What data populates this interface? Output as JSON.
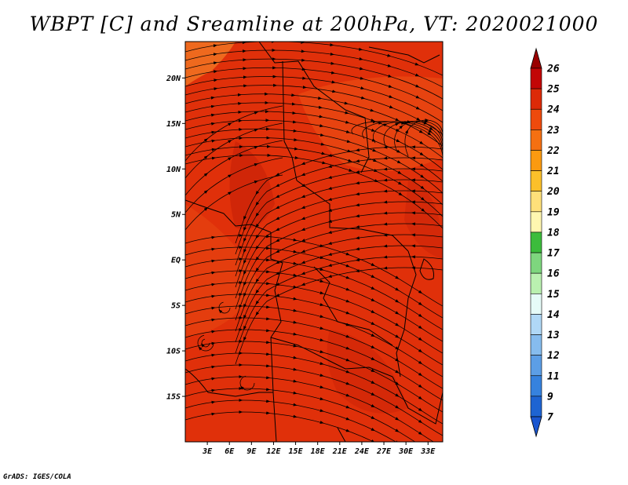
{
  "title": "WBPT [C] and Sreamline at 200hPa, VT: 2020021000",
  "credit": "GrADS: IGES/COLA",
  "map": {
    "lon_range": [
      0,
      35
    ],
    "lat_range": [
      -20,
      24
    ],
    "lat_ticks": [
      {
        "value": 20,
        "label": "20N"
      },
      {
        "value": 15,
        "label": "15N"
      },
      {
        "value": 10,
        "label": "10N"
      },
      {
        "value": 5,
        "label": "5N"
      },
      {
        "value": 0,
        "label": "EQ"
      },
      {
        "value": -5,
        "label": "5S"
      },
      {
        "value": -10,
        "label": "10S"
      },
      {
        "value": -15,
        "label": "15S"
      }
    ],
    "lon_ticks": [
      {
        "value": 3,
        "label": "3E"
      },
      {
        "value": 6,
        "label": "6E"
      },
      {
        "value": 9,
        "label": "9E"
      },
      {
        "value": 12,
        "label": "12E"
      },
      {
        "value": 15,
        "label": "15E"
      },
      {
        "value": 18,
        "label": "18E"
      },
      {
        "value": 21,
        "label": "21E"
      },
      {
        "value": 24,
        "label": "24E"
      },
      {
        "value": 27,
        "label": "27E"
      },
      {
        "value": 30,
        "label": "30E"
      },
      {
        "value": 33,
        "label": "33E"
      }
    ],
    "field_colors": {
      "dominant": "#e0300a",
      "warm": "#e84812",
      "cool": "#cc2408",
      "light": "#f07020"
    }
  },
  "colorbar": {
    "levels": [
      {
        "label": "26",
        "color": "#9a0000"
      },
      {
        "label": "25",
        "color": "#c20606"
      },
      {
        "label": "24",
        "color": "#dc2a08"
      },
      {
        "label": "23",
        "color": "#ee4a0c"
      },
      {
        "label": "22",
        "color": "#f57012"
      },
      {
        "label": "21",
        "color": "#fb9a10"
      },
      {
        "label": "20",
        "color": "#fcc02a"
      },
      {
        "label": "19",
        "color": "#ffe07a"
      },
      {
        "label": "18",
        "color": "#fff6b0"
      },
      {
        "label": "17",
        "color": "#3cbc3c"
      },
      {
        "label": "16",
        "color": "#7ed67e"
      },
      {
        "label": "15",
        "color": "#baf0b0"
      },
      {
        "label": "14",
        "color": "#e6fbf8"
      },
      {
        "label": "13",
        "color": "#b0d8f6"
      },
      {
        "label": "12",
        "color": "#86bcee"
      },
      {
        "label": "11",
        "color": "#5c9ee6"
      },
      {
        "label": "9",
        "color": "#3682de"
      },
      {
        "label": "7",
        "color": "#1e64d2"
      }
    ],
    "bottom_color": "#1a56d0"
  }
}
